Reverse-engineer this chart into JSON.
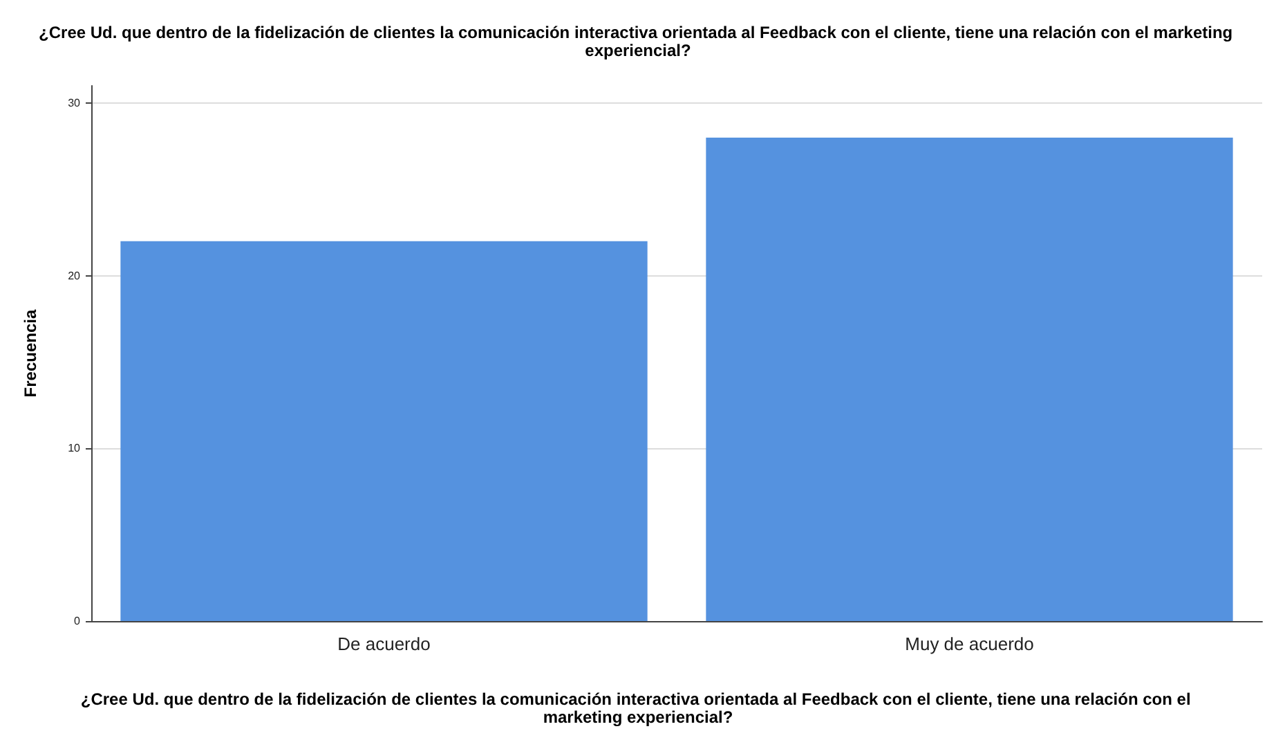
{
  "chart_data": {
    "type": "bar",
    "title": "¿Cree Ud. que dentro de la fidelización de clientes la comunicación interactiva orientada al Feedback con el cliente, tiene una relación con el marketing experiencial?",
    "xlabel": "¿Cree Ud. que dentro de la fidelización de clientes la comunicación interactiva orientada al Feedback con el cliente, tiene una relación con el marketing experiencial?",
    "ylabel": "Frecuencia",
    "categories": [
      "De acuerdo",
      "Muy de acuerdo"
    ],
    "values": [
      22,
      28
    ],
    "color": "#5592df",
    "ylim": [
      0,
      31
    ],
    "yticks": [
      0,
      10,
      20,
      30
    ],
    "grid": "y"
  }
}
